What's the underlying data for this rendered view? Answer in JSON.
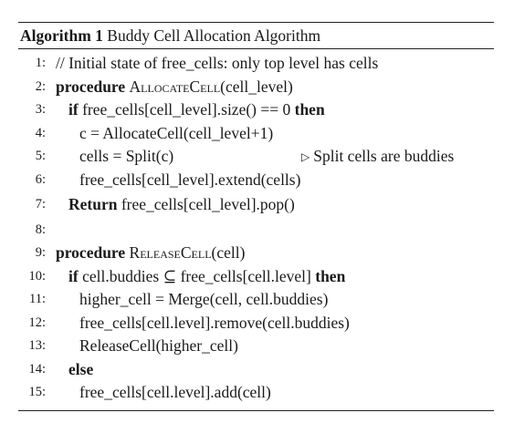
{
  "algorithm": {
    "caption_label": "Algorithm 1",
    "caption_title": "Buddy Cell Allocation Algorithm",
    "lines": [
      {
        "num": "1:",
        "text": "// Initial state of free_cells: only top level has cells"
      },
      {
        "num": "2:",
        "kw": "procedure",
        "name": "AllocateCell",
        "rest": "(cell_level)"
      },
      {
        "num": "3:",
        "kw": "if",
        "text": " free_cells[cell_level].size() == 0 ",
        "kw2": "then"
      },
      {
        "num": "4:",
        "text": "c = AllocateCell(cell_level+1)"
      },
      {
        "num": "5:",
        "text": "cells = Split(c)",
        "comment": "Split cells are buddies"
      },
      {
        "num": "6:",
        "text": "free_cells[cell_level].extend(cells)"
      },
      {
        "num": "7:",
        "kw": "Return",
        "text": " free_cells[cell_level].pop()"
      },
      {
        "num": "8:"
      },
      {
        "num": "9:",
        "kw": "procedure",
        "name": "ReleaseCell",
        "rest": "(cell)"
      },
      {
        "num": "10:",
        "kw": "if",
        "text": " cell.buddies ⊆ free_cells[cell.level] ",
        "kw2": "then"
      },
      {
        "num": "11:",
        "text": "higher_cell = Merge(cell, cell.buddies)"
      },
      {
        "num": "12:",
        "text": "free_cells[cell.level].remove(cell.buddies)"
      },
      {
        "num": "13:",
        "text": "ReleaseCell(higher_cell)"
      },
      {
        "num": "14:",
        "kw": "else"
      },
      {
        "num": "15:",
        "text": "free_cells[cell.level].add(cell)"
      }
    ]
  }
}
